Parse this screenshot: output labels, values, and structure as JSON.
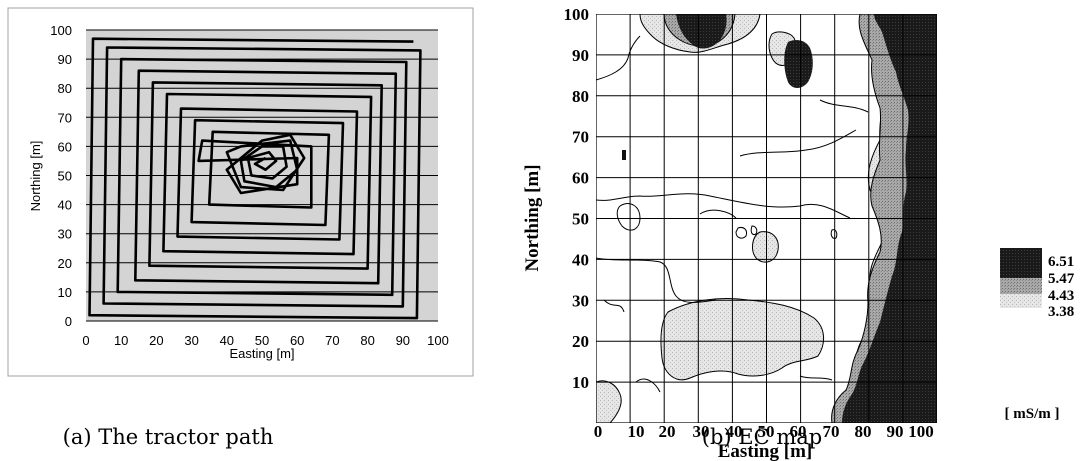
{
  "chart_data": [
    {
      "type": "line",
      "caption": "(a) The tractor path",
      "xlabel": "Easting [m]",
      "ylabel": "Northing [m]",
      "xlim": [
        0,
        100
      ],
      "ylim": [
        0,
        100
      ],
      "xticks": [
        0,
        10,
        20,
        30,
        40,
        50,
        60,
        70,
        80,
        90,
        100
      ],
      "yticks": [
        0,
        10,
        20,
        30,
        40,
        50,
        60,
        70,
        80,
        90,
        100
      ],
      "grid": "horizontal",
      "series": [
        {
          "points": [
            [
              93,
              96
            ],
            [
              2,
              97
            ],
            [
              1,
              2
            ],
            [
              94,
              1
            ],
            [
              95,
              93
            ],
            [
              6,
              94
            ],
            [
              5,
              6
            ],
            [
              90,
              5
            ],
            [
              91,
              89
            ],
            [
              10,
              90
            ],
            [
              9,
              10
            ],
            [
              87,
              9
            ],
            [
              88,
              85
            ],
            [
              15,
              86
            ],
            [
              14,
              14
            ],
            [
              83,
              13
            ],
            [
              84,
              81
            ],
            [
              19,
              82
            ],
            [
              18,
              19
            ],
            [
              80,
              18
            ],
            [
              81,
              77
            ],
            [
              23,
              78
            ],
            [
              22,
              24
            ],
            [
              76,
              23
            ],
            [
              77,
              72
            ],
            [
              27,
              73
            ],
            [
              26,
              29
            ],
            [
              72,
              28
            ],
            [
              73,
              68
            ],
            [
              31,
              69
            ],
            [
              30,
              34
            ],
            [
              68,
              33
            ],
            [
              69,
              64
            ],
            [
              36,
              65
            ],
            [
              35,
              40
            ],
            [
              64,
              39
            ],
            [
              64,
              60
            ],
            [
              33,
              62
            ],
            [
              32,
              55
            ],
            [
              60,
              56
            ],
            [
              60,
              47
            ],
            [
              44,
              44
            ],
            [
              40,
              52
            ],
            [
              50,
              62
            ],
            [
              58,
              64
            ],
            [
              62,
              56
            ],
            [
              56,
              45
            ],
            [
              44,
              46
            ],
            [
              40,
              58
            ],
            [
              44,
              60
            ],
            [
              58,
              62
            ],
            [
              60,
              52
            ],
            [
              54,
              46
            ],
            [
              45,
              48
            ],
            [
              44,
              55
            ],
            [
              50,
              60
            ],
            [
              56,
              60
            ],
            [
              57,
              53
            ],
            [
              53,
              49
            ],
            [
              47,
              50
            ],
            [
              46,
              56
            ],
            [
              52,
              58
            ],
            [
              54,
              55
            ],
            [
              51,
              52
            ],
            [
              48,
              54
            ],
            [
              51,
              56
            ]
          ]
        }
      ]
    },
    {
      "type": "heatmap",
      "caption": "(b) EC map",
      "xlabel": "Easting [m]",
      "ylabel": "Northing [m]",
      "xlim": [
        0,
        100
      ],
      "ylim": [
        0,
        100
      ],
      "xticks": [
        "0",
        "10",
        "20",
        "30",
        "40",
        "50",
        "60",
        "70",
        "80",
        "90",
        "100"
      ],
      "yticks": [
        "10",
        "20",
        "30",
        "40",
        "50",
        "60",
        "70",
        "80",
        "90",
        "100"
      ],
      "grid": "on",
      "legend_position": "right",
      "legend_unit": "[ mS/m ]",
      "legend_levels": [
        {
          "label": "6.51",
          "color": "#141414"
        },
        {
          "label": "5.47",
          "color": "#8e8e8e"
        },
        {
          "label": "4.43",
          "color": "#d6d6d6"
        },
        {
          "label": "3.38",
          "color": "#ffffff"
        }
      ]
    }
  ]
}
